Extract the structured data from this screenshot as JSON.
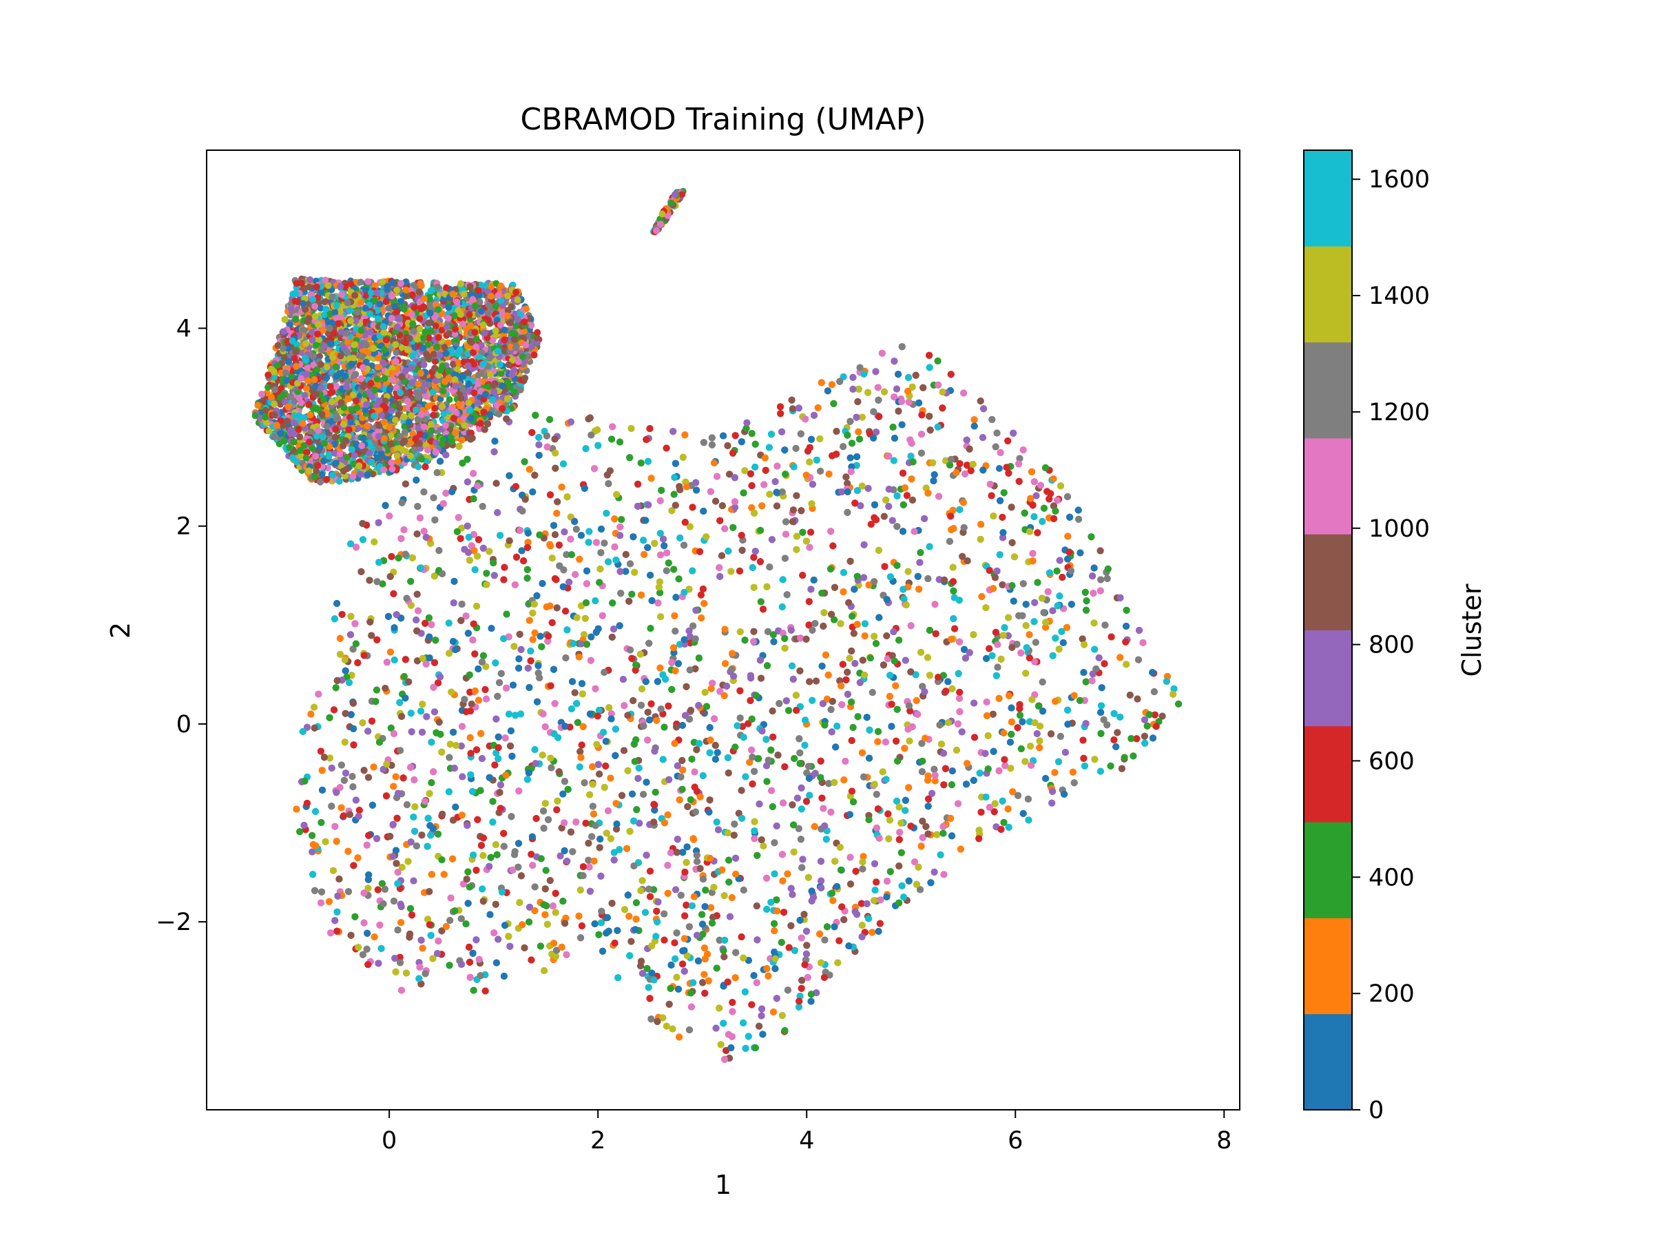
{
  "chart_data": {
    "type": "scatter",
    "title": "CBRAMOD Training (UMAP)",
    "xlabel": "1",
    "ylabel": "2",
    "xlim": [
      -1.75,
      8.15
    ],
    "ylim": [
      -3.9,
      5.8
    ],
    "x_ticks": [
      0,
      2,
      4,
      6,
      8
    ],
    "x_tick_labels": [
      "0",
      "2",
      "4",
      "6",
      "8"
    ],
    "y_ticks": [
      -2,
      0,
      2,
      4
    ],
    "y_tick_labels": [
      "−2",
      "0",
      "2",
      "4"
    ],
    "grid": false,
    "colorbar": {
      "label": "Cluster",
      "range": [
        0,
        1650
      ],
      "ticks": [
        0,
        200,
        400,
        600,
        800,
        1000,
        1200,
        1400,
        1600
      ],
      "tick_labels": [
        "0",
        "200",
        "400",
        "600",
        "800",
        "1000",
        "1200",
        "1400",
        "1600"
      ],
      "colormap": "tab10",
      "colors": [
        "#1f77b4",
        "#ff7f0e",
        "#2ca02c",
        "#d62728",
        "#9467bd",
        "#8c564b",
        "#e377c2",
        "#7f7f7f",
        "#bcbd22",
        "#17becf"
      ]
    },
    "point_cloud": {
      "description_of_extent": "dense UMAP embedding; points drawn from these approximate regions in data units",
      "regions": [
        {
          "polygon": [
            [
              -0.9,
              4.5
            ],
            [
              1.2,
              4.45
            ],
            [
              1.45,
              3.9
            ],
            [
              1.2,
              3.2
            ],
            [
              0.3,
              2.6
            ],
            [
              -0.7,
              2.4
            ],
            [
              -1.3,
              3.1
            ],
            [
              -1.0,
              4.1
            ]
          ],
          "weight": 10
        },
        {
          "polygon": [
            [
              -0.2,
              2.3
            ],
            [
              0.8,
              3.2
            ],
            [
              1.6,
              3.2
            ],
            [
              2.5,
              3.0
            ],
            [
              3.5,
              3.1
            ],
            [
              4.2,
              3.5
            ],
            [
              5.0,
              3.9
            ],
            [
              6.0,
              3.0
            ],
            [
              6.6,
              2.2
            ],
            [
              7.1,
              1.3
            ],
            [
              7.6,
              0.2
            ],
            [
              7.0,
              -0.6
            ],
            [
              6.2,
              -1.0
            ],
            [
              5.2,
              -1.6
            ],
            [
              4.3,
              -2.5
            ],
            [
              3.8,
              -3.2
            ],
            [
              3.2,
              -3.45
            ],
            [
              2.5,
              -3.0
            ],
            [
              1.9,
              -2.2
            ],
            [
              1.2,
              -2.7
            ],
            [
              0.1,
              -2.7
            ],
            [
              -0.5,
              -2.3
            ],
            [
              -0.8,
              -1.5
            ],
            [
              -1.0,
              -0.5
            ],
            [
              -0.6,
              0.5
            ],
            [
              -0.5,
              1.5
            ]
          ],
          "weight": 40
        },
        {
          "polygon": [
            [
              2.5,
              4.9
            ],
            [
              2.62,
              5.05
            ],
            [
              2.85,
              5.4
            ],
            [
              2.75,
              5.38
            ],
            [
              2.58,
              5.1
            ]
          ],
          "weight": 0.2
        }
      ],
      "seed": 7
    }
  }
}
